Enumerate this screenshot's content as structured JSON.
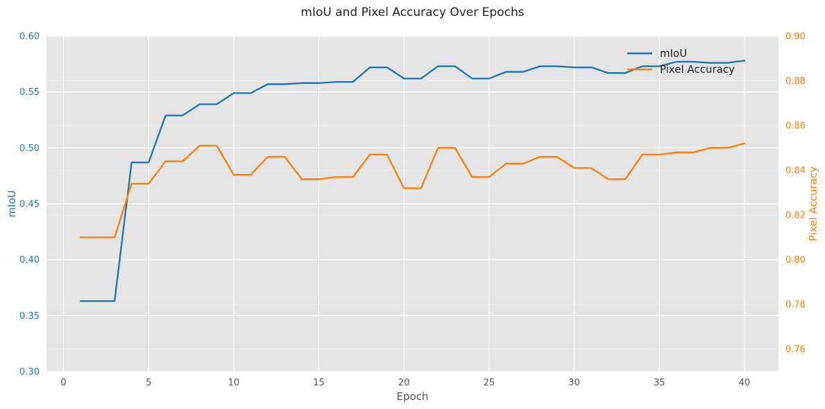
{
  "chart_data": {
    "type": "line",
    "title": "mIoU and Pixel Accuracy Over Epochs",
    "xlabel": "Epoch",
    "ylabel_left": "mIoU",
    "ylabel_right": "Pixel Accuracy",
    "xlim": [
      -1,
      42
    ],
    "ylim_left": [
      0.3,
      0.6
    ],
    "ylim_right": [
      0.75,
      0.9
    ],
    "x_ticks": [
      0,
      5,
      10,
      15,
      20,
      25,
      30,
      35,
      40
    ],
    "y_ticks_left": [
      0.3,
      0.35,
      0.4,
      0.45,
      0.5,
      0.55,
      0.6
    ],
    "y_ticks_right": [
      0.76,
      0.78,
      0.8,
      0.82,
      0.84,
      0.86,
      0.88,
      0.9
    ],
    "grid": true,
    "legend_position": "top-right",
    "background_color": "#e5e5e5",
    "x": [
      1,
      2,
      3,
      4,
      5,
      6,
      7,
      8,
      9,
      10,
      11,
      12,
      13,
      14,
      15,
      16,
      17,
      18,
      19,
      20,
      21,
      22,
      23,
      24,
      25,
      26,
      27,
      28,
      29,
      30,
      31,
      32,
      33,
      34,
      35,
      36,
      37,
      38,
      39,
      40
    ],
    "series": [
      {
        "name": "mIoU",
        "axis": "left",
        "color": "#1f77b4",
        "values": [
          0.363,
          0.363,
          0.363,
          0.487,
          0.487,
          0.529,
          0.529,
          0.539,
          0.539,
          0.549,
          0.549,
          0.557,
          0.557,
          0.558,
          0.558,
          0.559,
          0.559,
          0.572,
          0.572,
          0.562,
          0.562,
          0.573,
          0.573,
          0.562,
          0.562,
          0.568,
          0.568,
          0.573,
          0.573,
          0.572,
          0.572,
          0.567,
          0.567,
          0.573,
          0.573,
          0.577,
          0.577,
          0.576,
          0.576,
          0.578
        ]
      },
      {
        "name": "Pixel Accuracy",
        "axis": "right",
        "color": "#ff7f0e",
        "values": [
          0.81,
          0.81,
          0.81,
          0.834,
          0.834,
          0.844,
          0.844,
          0.851,
          0.851,
          0.838,
          0.838,
          0.846,
          0.846,
          0.836,
          0.836,
          0.837,
          0.837,
          0.847,
          0.847,
          0.832,
          0.832,
          0.85,
          0.85,
          0.837,
          0.837,
          0.843,
          0.843,
          0.846,
          0.846,
          0.841,
          0.841,
          0.836,
          0.836,
          0.847,
          0.847,
          0.848,
          0.848,
          0.85,
          0.85,
          0.852
        ]
      }
    ]
  }
}
